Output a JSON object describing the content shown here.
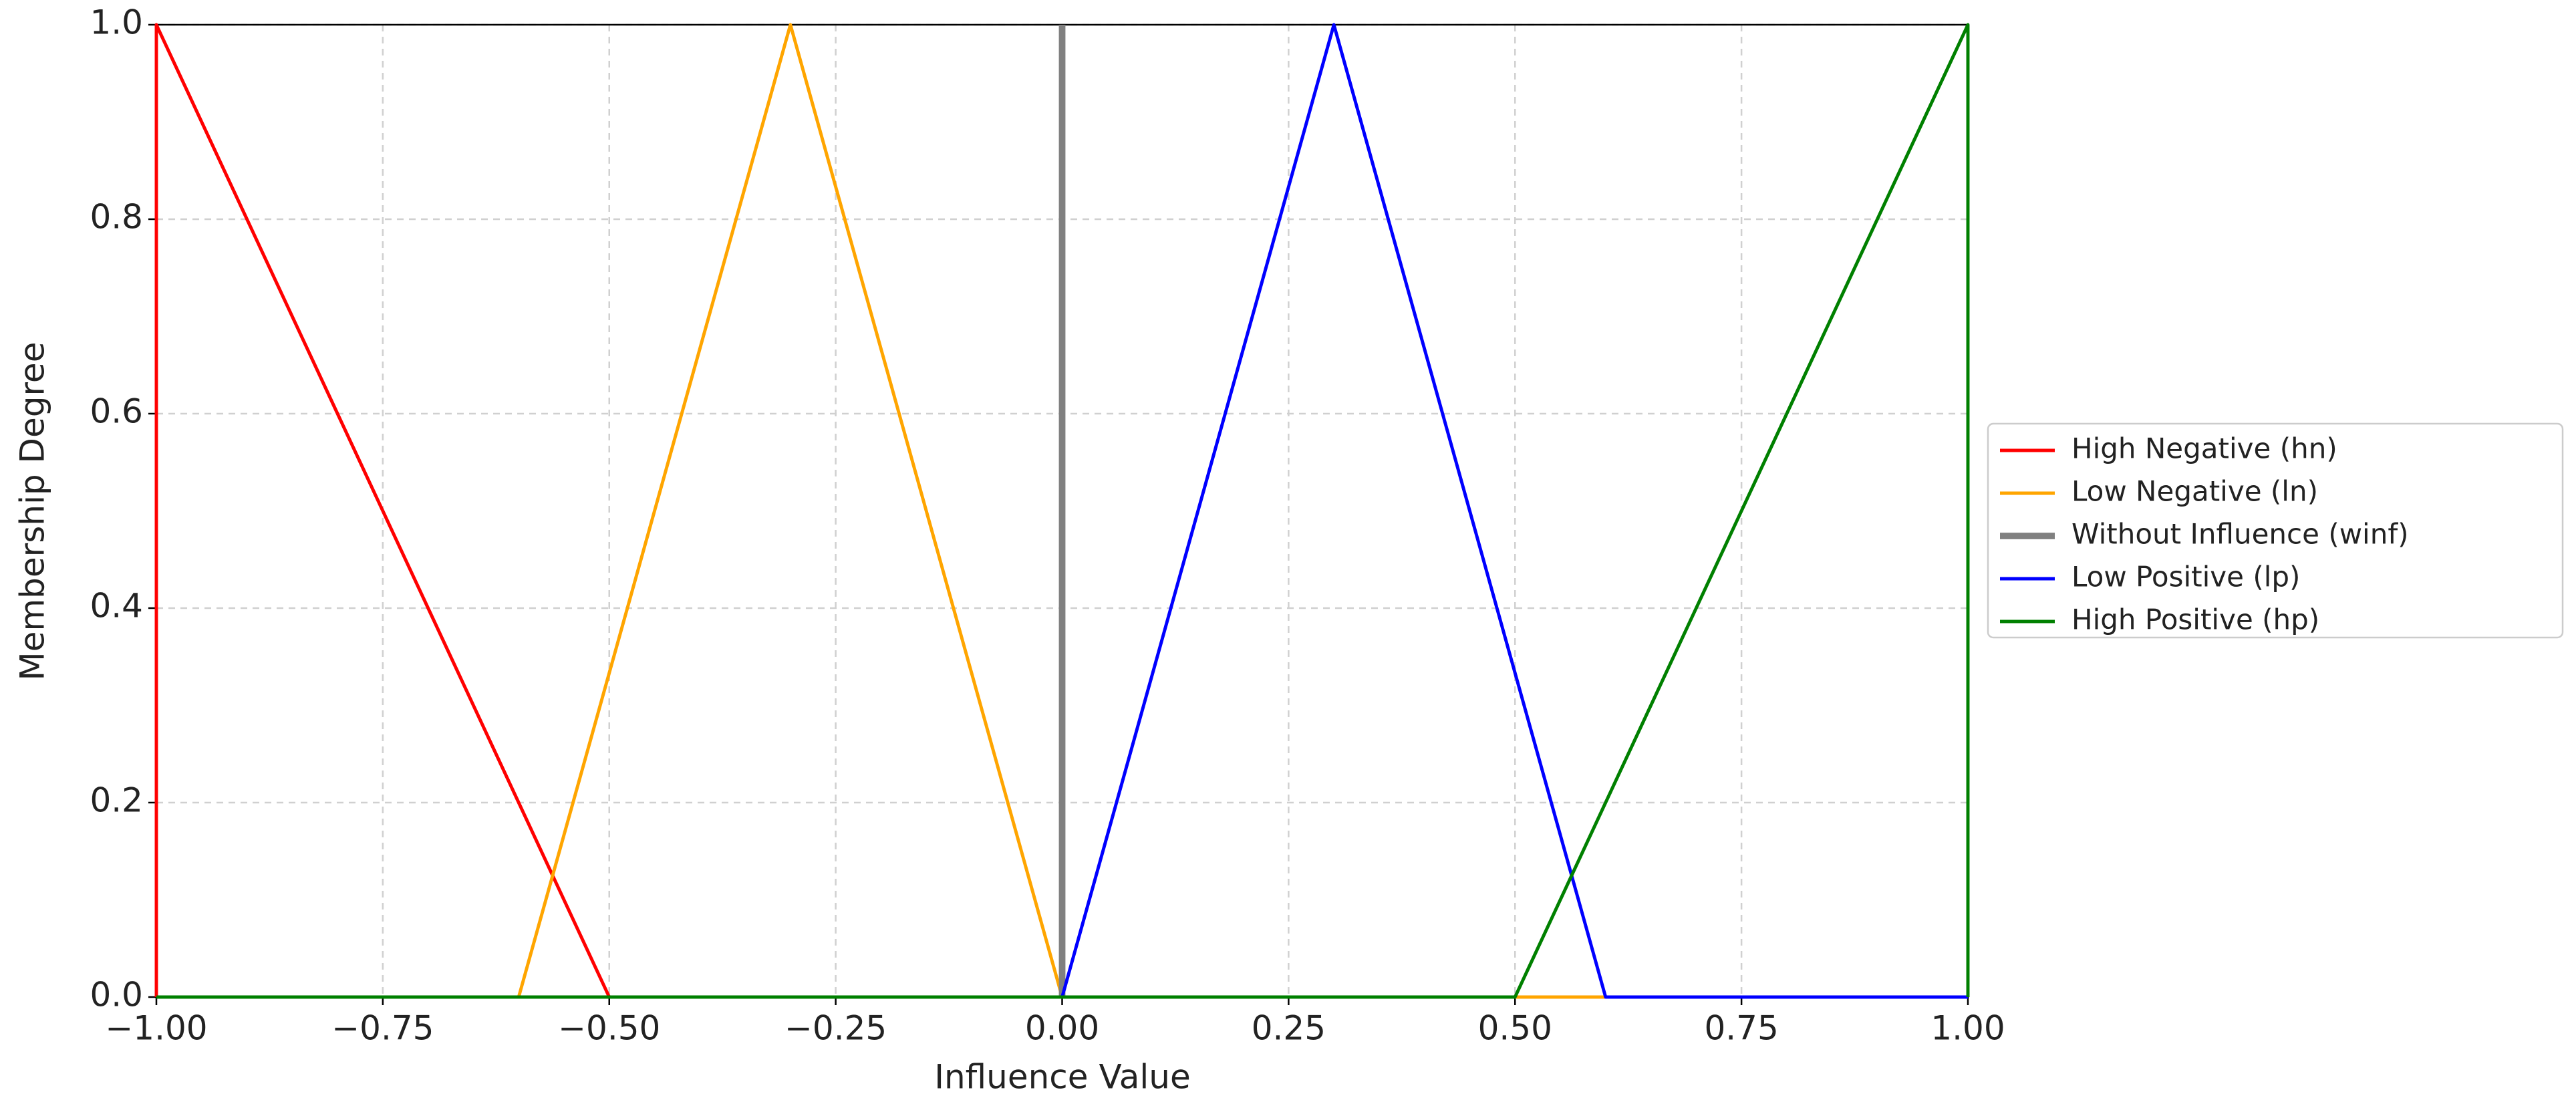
{
  "chart_data": {
    "type": "line",
    "xlabel": "Influence Value",
    "ylabel": "Membership Degree",
    "xlim": [
      -1,
      1
    ],
    "xticks": [
      {
        "value": -1,
        "label": "−1.00"
      },
      {
        "value": -0.75,
        "label": "−0.75"
      },
      {
        "value": -0.5,
        "label": "−0.50"
      },
      {
        "value": -0.25,
        "label": "−0.25"
      },
      {
        "value": 0,
        "label": "0.00"
      },
      {
        "value": 0.25,
        "label": "0.25"
      },
      {
        "value": 0.5,
        "label": "0.50"
      },
      {
        "value": 0.75,
        "label": "0.75"
      },
      {
        "value": 1,
        "label": "1.00"
      }
    ],
    "ylim": [
      0,
      1
    ],
    "yticks": [
      {
        "value": 0,
        "label": "0.0"
      },
      {
        "value": 0.2,
        "label": "0.2"
      },
      {
        "value": 0.4,
        "label": "0.4"
      },
      {
        "value": 0.6,
        "label": "0.6"
      },
      {
        "value": 0.8,
        "label": "0.8"
      },
      {
        "value": 1,
        "label": "1.0"
      }
    ],
    "grid": true,
    "legend_position": "outside-right",
    "series": [
      {
        "name": "High Negative (hn)",
        "color": "#ff0000",
        "line_width": 2,
        "x": [
          -1,
          -1,
          -0.5,
          1
        ],
        "values": [
          0,
          1,
          0,
          0
        ]
      },
      {
        "name": "Low Negative (ln)",
        "color": "#ffa500",
        "line_width": 2,
        "x": [
          -1,
          -0.6,
          -0.3,
          0,
          1
        ],
        "values": [
          0,
          0,
          1,
          0,
          0
        ]
      },
      {
        "name": "Without Influence (winf)",
        "color": "#808080",
        "line_width": 4,
        "x": [
          0,
          0
        ],
        "values": [
          0,
          1
        ]
      },
      {
        "name": "Low Positive (lp)",
        "color": "#0000ff",
        "line_width": 2,
        "x": [
          -1,
          0,
          0.3,
          0.6,
          1
        ],
        "values": [
          0,
          0,
          1,
          0,
          0
        ]
      },
      {
        "name": "High Positive (hp)",
        "color": "#008000",
        "line_width": 2,
        "x": [
          -1,
          0.5,
          1,
          1
        ],
        "values": [
          0,
          0,
          1,
          0
        ]
      }
    ]
  }
}
